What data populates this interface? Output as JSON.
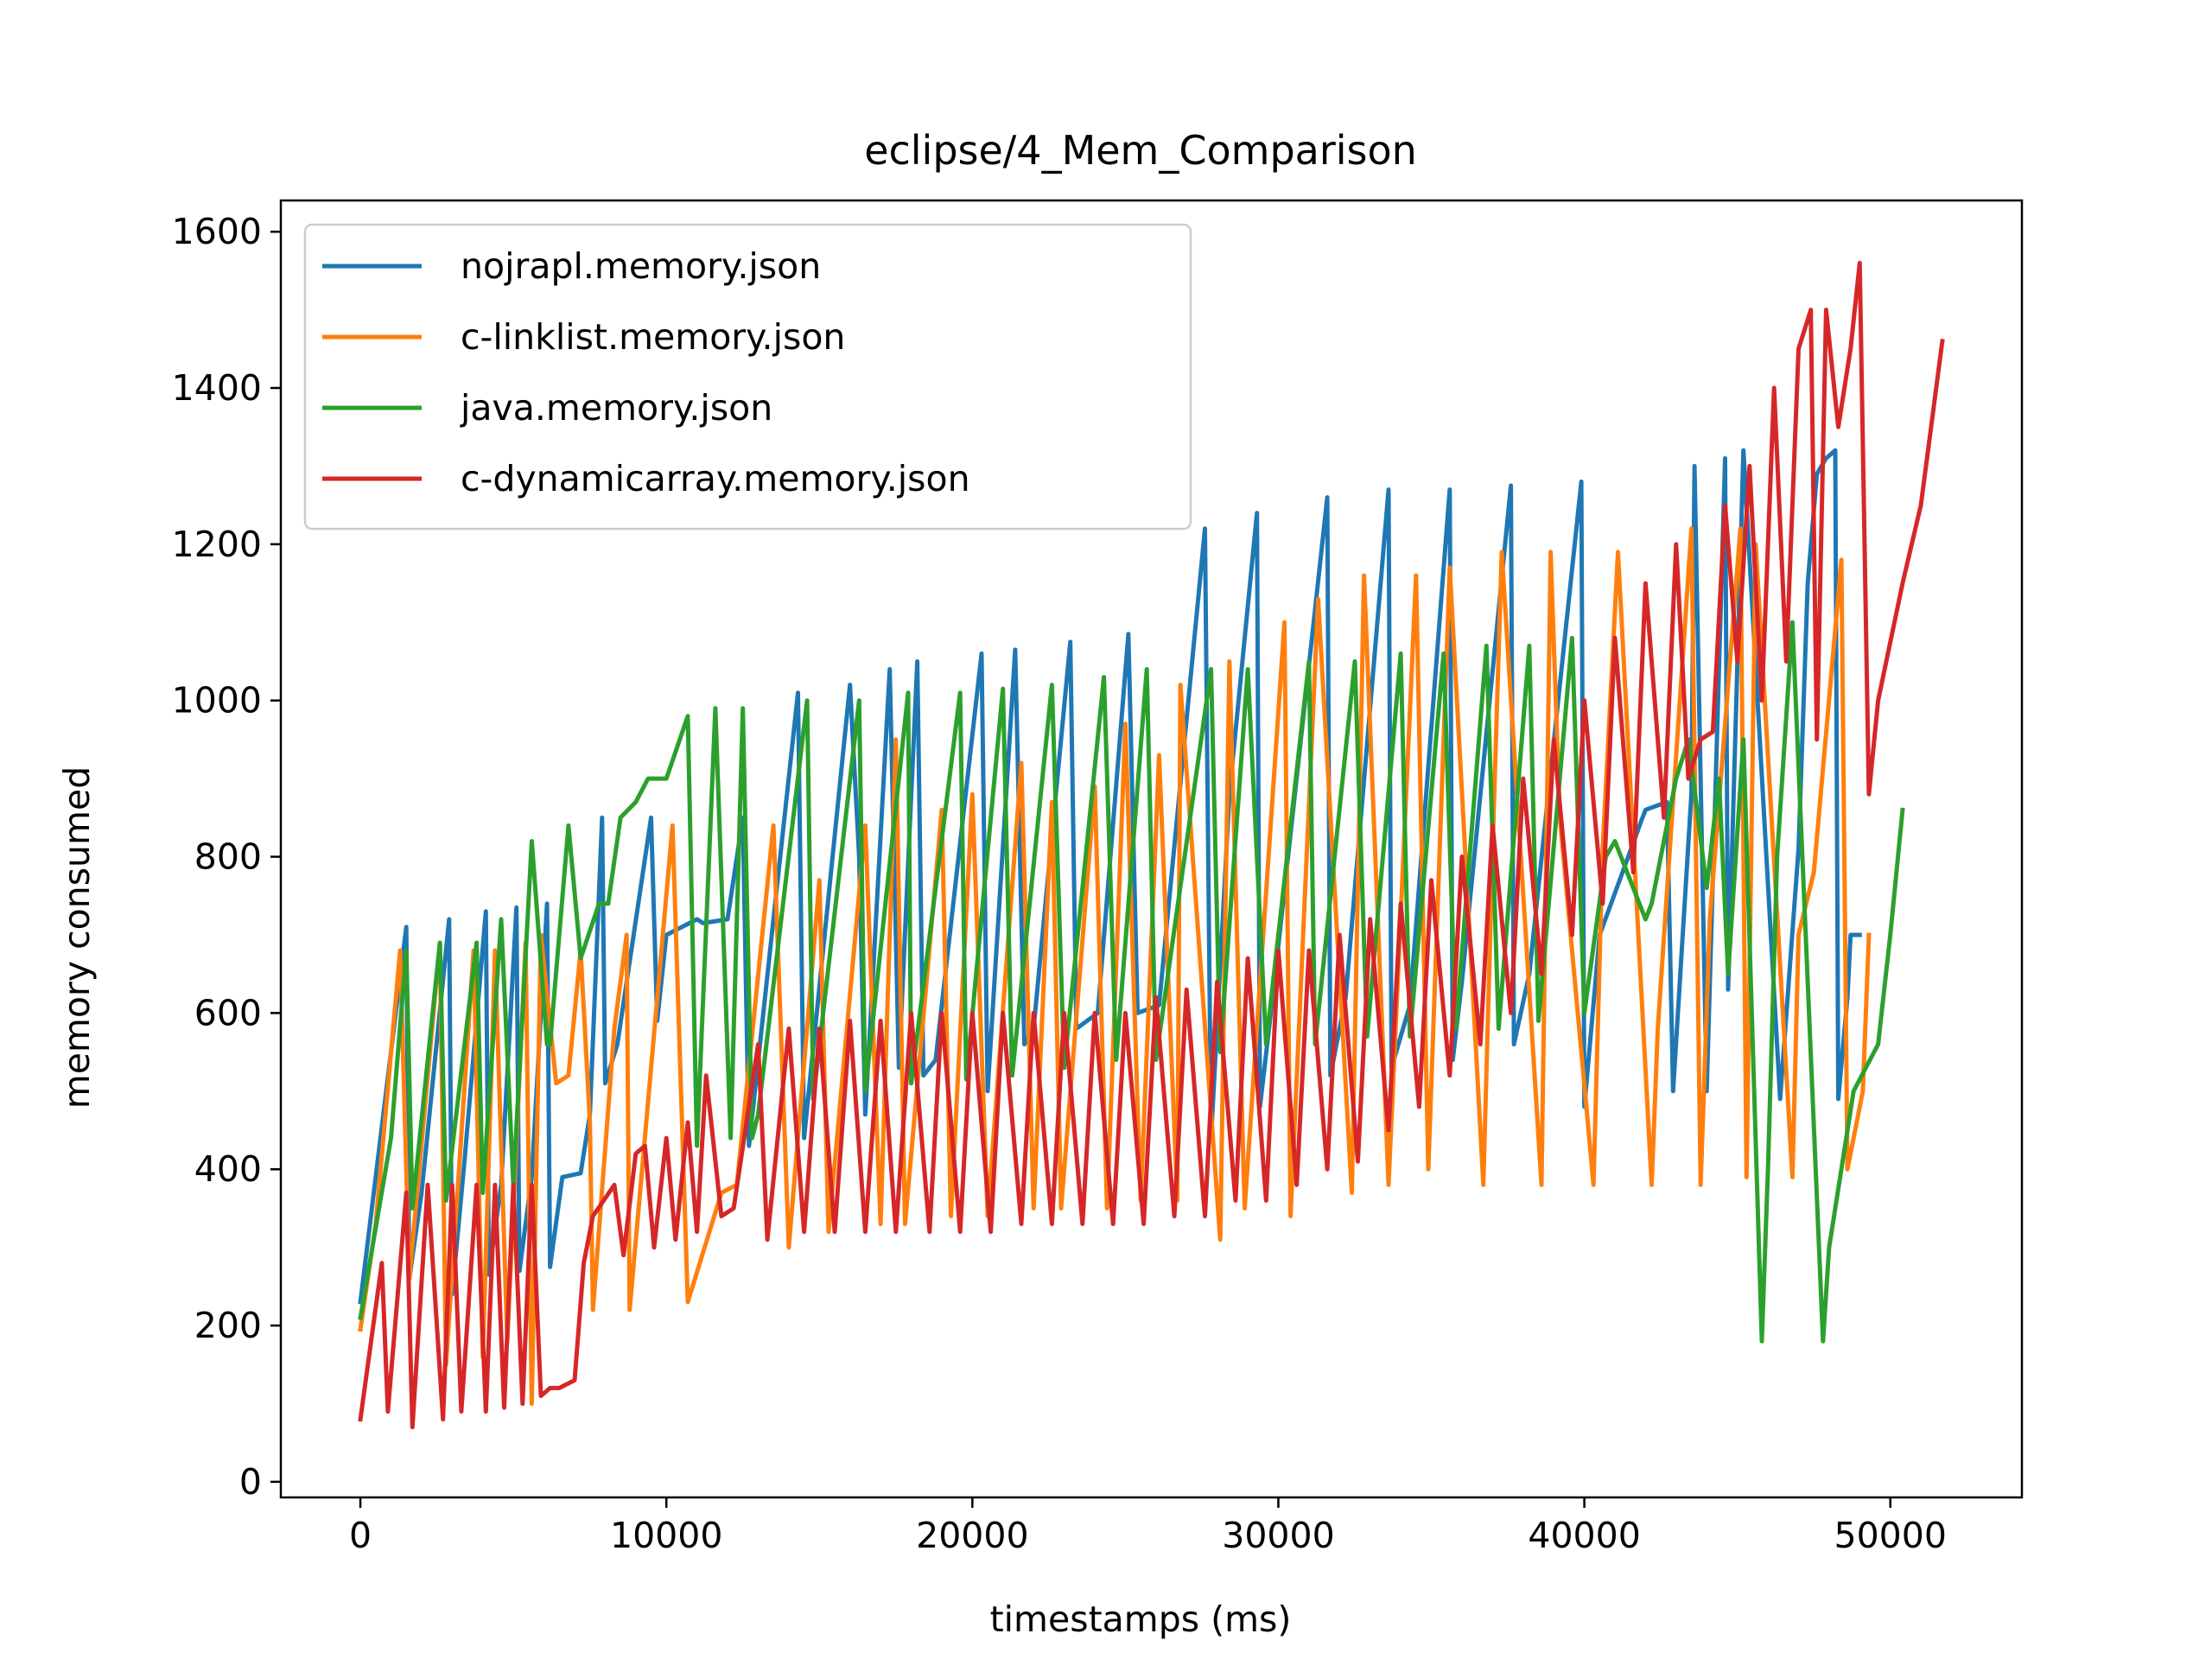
{
  "chart_data": {
    "type": "line",
    "title": "eclipse/4_Mem_Comparison",
    "xlabel": "timestamps (ms)",
    "ylabel": "memory consumed",
    "xlim": [
      -2600,
      54300
    ],
    "ylim": [
      -20,
      1640
    ],
    "xticks": [
      0,
      10000,
      20000,
      30000,
      40000,
      50000
    ],
    "yticks": [
      0,
      200,
      400,
      600,
      800,
      1000,
      1200,
      1400,
      1600
    ],
    "grid": false,
    "legend_position": "top-left",
    "series": [
      {
        "name": "nojrapl.memory.json",
        "color": "#1f77b4",
        "x": [
          0,
          1500,
          1600,
          2000,
          2900,
          3000,
          3400,
          4100,
          4200,
          4600,
          5100,
          5200,
          5600,
          6100,
          6200,
          6600,
          7200,
          7500,
          7900,
          8000,
          8400,
          9500,
          9700,
          10000,
          11000,
          11200,
          12000,
          12500,
          12700,
          14300,
          14500,
          16000,
          16300,
          16500,
          17300,
          17600,
          18200,
          18400,
          18800,
          20300,
          20500,
          21400,
          21700,
          22000,
          23200,
          23400,
          24100,
          25100,
          25400,
          26100,
          27600,
          27800,
          28400,
          29300,
          29400,
          29900,
          31600,
          31700,
          32200,
          33600,
          33700,
          34300,
          35600,
          35700,
          36000,
          37600,
          37700,
          38200,
          39900,
          40000,
          40500,
          41900,
          42000,
          42700,
          42900,
          43500,
          43600,
          44000,
          44600,
          44700,
          45200,
          46400,
          47000,
          47300,
          47600,
          47900,
          48200,
          48300,
          48600,
          48700,
          49000
        ],
        "values": [
          230,
          710,
          260,
          370,
          720,
          240,
          410,
          730,
          265,
          380,
          735,
          270,
          390,
          740,
          275,
          390,
          395,
          470,
          850,
          510,
          560,
          850,
          590,
          700,
          720,
          715,
          720,
          850,
          430,
          1010,
          440,
          1020,
          800,
          470,
          1040,
          530,
          1050,
          520,
          540,
          1060,
          500,
          1065,
          560,
          580,
          1075,
          580,
          600,
          1085,
          600,
          610,
          1220,
          440,
          880,
          1240,
          480,
          650,
          1260,
          520,
          620,
          1270,
          530,
          610,
          1270,
          540,
          640,
          1275,
          560,
          650,
          1280,
          480,
          700,
          850,
          860,
          870,
          500,
          880,
          1300,
          500,
          1310,
          630,
          1320,
          490,
          810,
          1150,
          1290,
          1310,
          1320,
          490,
          620,
          700,
          700
        ]
      },
      {
        "name": "c-linklist.memory.json",
        "color": "#ff7f0e",
        "x": [
          0,
          500,
          1300,
          1600,
          2600,
          2800,
          3700,
          4000,
          4400,
          4800,
          5400,
          5600,
          5900,
          6400,
          6800,
          7200,
          7500,
          7600,
          8300,
          8700,
          8800,
          10200,
          10700,
          11800,
          12300,
          13500,
          14000,
          15000,
          15300,
          16500,
          17000,
          17500,
          17800,
          19000,
          19300,
          20000,
          20500,
          21600,
          22000,
          22600,
          22900,
          24000,
          24400,
          25000,
          25500,
          26100,
          26700,
          26800,
          28100,
          28400,
          28900,
          30200,
          30400,
          31300,
          32400,
          32800,
          33600,
          34500,
          34900,
          35600,
          36700,
          37000,
          37300,
          38600,
          38900,
          39200,
          40300,
          40600,
          41100,
          42200,
          42400,
          43500,
          43800,
          44100,
          45100,
          45300,
          45600,
          46800,
          47000,
          47500,
          48400,
          48600,
          49100,
          49300
        ],
        "values": [
          195,
          330,
          680,
          260,
          690,
          150,
          680,
          160,
          680,
          180,
          690,
          100,
          700,
          510,
          520,
          680,
          460,
          220,
          580,
          700,
          220,
          840,
          230,
          370,
          380,
          840,
          300,
          770,
          320,
          840,
          330,
          950,
          330,
          860,
          340,
          880,
          340,
          920,
          350,
          870,
          350,
          890,
          350,
          970,
          360,
          930,
          360,
          1020,
          310,
          1050,
          350,
          1100,
          340,
          1130,
          370,
          1160,
          380,
          1160,
          400,
          1170,
          380,
          810,
          1190,
          380,
          1190,
          850,
          380,
          810,
          1190,
          380,
          580,
          1220,
          380,
          720,
          1220,
          390,
          1200,
          390,
          700,
          780,
          1180,
          400,
          500,
          700
        ]
      },
      {
        "name": "java.memory.json",
        "color": "#2ca02c",
        "x": [
          0,
          1000,
          1500,
          1700,
          2600,
          2800,
          3800,
          4000,
          4600,
          5000,
          5600,
          6100,
          6200,
          6800,
          7200,
          7800,
          8100,
          8500,
          9000,
          9400,
          10000,
          10700,
          11000,
          11600,
          12100,
          12500,
          12800,
          13000,
          14600,
          14800,
          16300,
          16500,
          17900,
          18000,
          19600,
          19800,
          21000,
          21300,
          22600,
          23000,
          24300,
          24700,
          25700,
          26000,
          27800,
          28100,
          29000,
          29600,
          31000,
          31200,
          32500,
          32900,
          34000,
          34300,
          35400,
          35800,
          36800,
          37200,
          38200,
          38500,
          39600,
          40000,
          40700,
          41000,
          42000,
          42200,
          43000,
          43400,
          44000,
          44400,
          44700,
          45200,
          45800,
          46000,
          46300,
          46800,
          47800,
          48000,
          48800,
          49600,
          50000,
          50400
        ],
        "values": [
          210,
          440,
          680,
          350,
          690,
          360,
          690,
          370,
          720,
          380,
          820,
          560,
          560,
          840,
          670,
          740,
          740,
          850,
          870,
          900,
          900,
          980,
          430,
          990,
          440,
          990,
          440,
          470,
          1000,
          490,
          1000,
          500,
          1010,
          510,
          1010,
          515,
          1015,
          520,
          1020,
          530,
          1030,
          540,
          1040,
          540,
          1040,
          550,
          1040,
          560,
          1050,
          560,
          1050,
          570,
          1060,
          570,
          1060,
          580,
          1070,
          580,
          1070,
          590,
          1080,
          600,
          800,
          820,
          720,
          740,
          900,
          950,
          760,
          900,
          650,
          950,
          180,
          400,
          800,
          1100,
          180,
          300,
          500,
          560,
          700,
          860
        ]
      },
      {
        "name": "c-dynamicarray.memory.json",
        "color": "#d62728",
        "x": [
          0,
          700,
          900,
          1500,
          1700,
          2200,
          2700,
          3000,
          3300,
          3800,
          4100,
          4400,
          4700,
          5000,
          5300,
          5600,
          5900,
          6200,
          6500,
          7000,
          7300,
          7600,
          8300,
          8600,
          9000,
          9300,
          9600,
          10000,
          10300,
          10700,
          11000,
          11300,
          11800,
          12200,
          13000,
          13300,
          14000,
          14500,
          15000,
          15500,
          16000,
          16500,
          17000,
          17500,
          18000,
          18600,
          19000,
          19600,
          20000,
          20600,
          21000,
          21600,
          22000,
          22600,
          23000,
          23600,
          24000,
          24600,
          25000,
          25600,
          26000,
          26600,
          27000,
          27600,
          28000,
          28600,
          29000,
          29600,
          30000,
          30600,
          31000,
          31600,
          32000,
          32600,
          33000,
          33600,
          34000,
          34600,
          35000,
          35600,
          36000,
          36600,
          37000,
          37600,
          38000,
          38600,
          39000,
          39600,
          40000,
          40600,
          41000,
          41600,
          42000,
          42600,
          43000,
          43400,
          43800,
          44200,
          44600,
          45000,
          45400,
          45800,
          46200,
          46600,
          47000,
          47400,
          47600,
          47900,
          48300,
          48700,
          49000,
          49300,
          49600,
          50400,
          51000,
          51700
        ],
        "values": [
          80,
          280,
          90,
          370,
          70,
          380,
          80,
          380,
          90,
          380,
          90,
          380,
          95,
          380,
          100,
          380,
          110,
          120,
          120,
          130,
          280,
          340,
          380,
          290,
          420,
          430,
          300,
          440,
          310,
          460,
          320,
          520,
          340,
          350,
          560,
          310,
          580,
          320,
          580,
          320,
          590,
          320,
          590,
          320,
          600,
          320,
          600,
          320,
          600,
          320,
          600,
          330,
          600,
          330,
          600,
          330,
          600,
          330,
          600,
          330,
          620,
          340,
          630,
          340,
          640,
          360,
          670,
          360,
          680,
          380,
          680,
          400,
          700,
          410,
          720,
          450,
          740,
          480,
          770,
          520,
          800,
          560,
          840,
          600,
          900,
          650,
          950,
          700,
          1000,
          740,
          1080,
          780,
          1150,
          850,
          1200,
          900,
          950,
          960,
          1250,
          1050,
          1300,
          1000,
          1400,
          1050,
          1450,
          1500,
          950,
          1500,
          1350,
          1450,
          1560,
          880,
          1000,
          1150,
          1250,
          1460
        ]
      }
    ]
  }
}
